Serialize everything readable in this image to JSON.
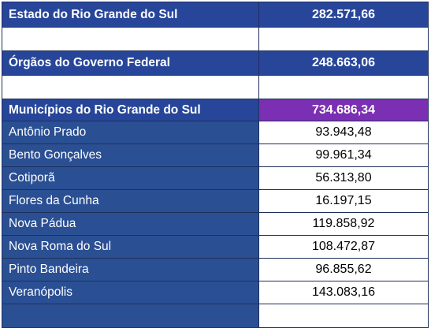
{
  "estado": {
    "label": "Estado do Rio Grande do Sul",
    "value": "282.571,66"
  },
  "orgaos": {
    "label": "Órgãos do Governo Federal",
    "value": "248.663,06"
  },
  "municipios": {
    "label": "Municípios do Rio Grande do Sul",
    "value": "734.686,34"
  },
  "cities": [
    {
      "name": "Antônio Prado",
      "value": "93.943,48"
    },
    {
      "name": "Bento Gonçalves",
      "value": "99.961,34"
    },
    {
      "name": "Cotiporã",
      "value": "56.313,80"
    },
    {
      "name": "Flores da Cunha",
      "value": "16.197,15"
    },
    {
      "name": "Nova Pádua",
      "value": "119.858,92"
    },
    {
      "name": "Nova Roma do Sul",
      "value": "108.472,87"
    },
    {
      "name": "Pinto Bandeira",
      "value": "96.855,62"
    },
    {
      "name": "Veranópolis",
      "value": "143.083,16"
    }
  ],
  "colors": {
    "header_blue": "#27469a",
    "row_blue": "#2a4f93",
    "highlight_purple": "#7b2fb3"
  }
}
